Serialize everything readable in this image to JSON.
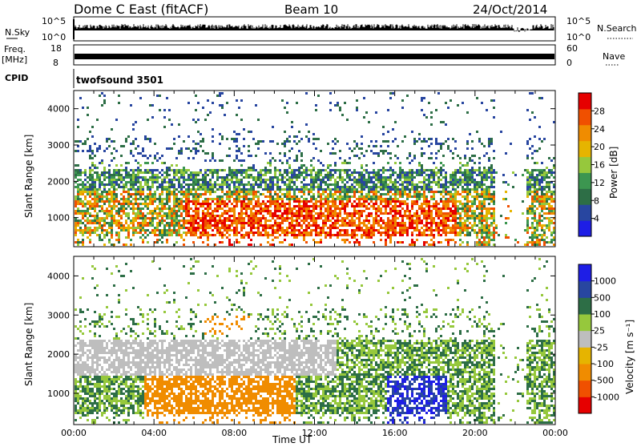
{
  "header": {
    "station": "Dome C East (fitACF)",
    "beam": "Beam 10",
    "date": "24/Oct/2014"
  },
  "noise_panel": {
    "left_label": "N.Sky",
    "left_ticks": [
      "10^5",
      "10^0"
    ],
    "right_ticks": [
      "10^5",
      "10^0"
    ],
    "right_label": "N.Search"
  },
  "freq_panel": {
    "left_label_top": "Freq.",
    "left_label_unit": "[MHz]",
    "left_ticks": [
      "18",
      "8"
    ],
    "right_ticks": [
      "60",
      "0"
    ],
    "right_label": "Nave"
  },
  "cpid": {
    "label": "CPID",
    "value": "twofsound 3501"
  },
  "colors": {
    "power_scale": [
      "#1e1ee6",
      "#2846a0",
      "#2d6e46",
      "#3c9650",
      "#96c83c",
      "#e6b400",
      "#f08c00",
      "#f05000",
      "#e60000"
    ],
    "velocity_scale": [
      "#e60000",
      "#f05000",
      "#f08c00",
      "#e6b400",
      "#bebebe",
      "#96c83c",
      "#2d6e46",
      "#2846a0",
      "#1e1ee6"
    ]
  },
  "chart_data": [
    {
      "type": "heatmap",
      "name": "power",
      "xlabel": "",
      "ylabel": "Slant Range [km]",
      "yticks": [
        "1000",
        "2000",
        "3000",
        "4000"
      ],
      "ylim": [
        200,
        4500
      ],
      "xlim_hours": [
        0,
        24
      ],
      "colorbar": {
        "label": "Power [dB]",
        "ticks": [
          "4",
          "8",
          "12",
          "16",
          "20",
          "24",
          "28"
        ],
        "range": [
          0,
          32
        ]
      }
    },
    {
      "type": "heatmap",
      "name": "velocity",
      "xlabel": "Time UT",
      "ylabel": "Slant Range [km]",
      "yticks": [
        "1000",
        "2000",
        "3000",
        "4000"
      ],
      "ylim": [
        200,
        4500
      ],
      "xticks": [
        "00:00",
        "04:00",
        "08:00",
        "12:00",
        "16:00",
        "20:00",
        "00:00"
      ],
      "xlim_hours": [
        0,
        24
      ],
      "colorbar": {
        "label": "Velocity [m s⁻¹]",
        "ticks": [
          "1000",
          "500",
          "100",
          "25",
          "-25",
          "-100",
          "-500",
          "-1000"
        ]
      }
    }
  ]
}
